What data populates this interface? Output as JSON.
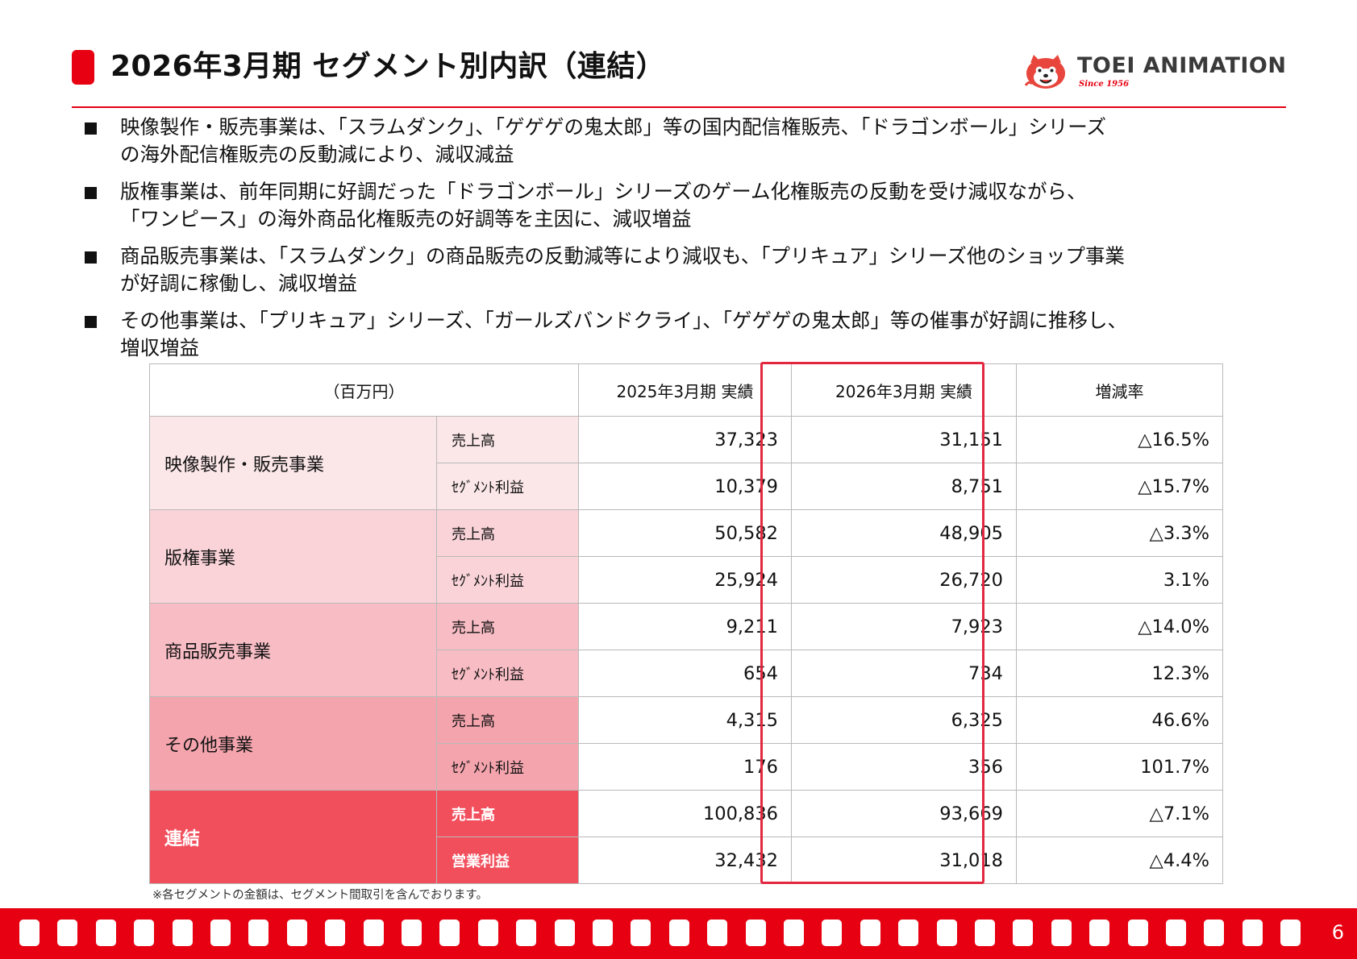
{
  "header": {
    "title": "2026年3月期 セグメント別内訳（連結）",
    "logo": {
      "name": "TOEI ANIMATION",
      "tagline": "Since 1956"
    }
  },
  "bullets": [
    {
      "line1": "映像製作・販売事業は、「スラムダンク」、「ゲゲゲの鬼太郎」等の国内配信権販売、「ドラゴンボール」シリーズ",
      "line2": "の海外配信権販売の反動減により、減収減益"
    },
    {
      "line1": "版権事業は、前年同期に好調だった「ドラゴンボール」シリーズのゲーム化権販売の反動を受け減収ながら、",
      "line2": "「ワンピース」の海外商品化権販売の好調等を主因に、減収増益"
    },
    {
      "line1": "商品販売事業は、「スラムダンク」の商品販売の反動減等により減収も、「プリキュア」シリーズ他のショップ事業",
      "line2": "が好調に稼働し、減収増益"
    },
    {
      "line1": "その他事業は、「プリキュア」シリーズ、「ガールズバンドクライ」、「ゲゲゲの鬼太郎」等の催事が好調に推移し、",
      "line2": "増収増益"
    }
  ],
  "table": {
    "unit": "（百万円）",
    "col_prev": "2025年3月期 実績",
    "col_curr": "2026年3月期 実績",
    "col_rate": "増減率",
    "segments": [
      {
        "name": "映像製作・販売事業",
        "rows": [
          {
            "item": "売上高",
            "prev": "37,323",
            "curr": "31,151",
            "rate": "△16.5%"
          },
          {
            "item": "ｾｸﾞﾒﾝﾄ利益",
            "prev": "10,379",
            "curr": "8,751",
            "rate": "△15.7%"
          }
        ]
      },
      {
        "name": "版権事業",
        "rows": [
          {
            "item": "売上高",
            "prev": "50,582",
            "curr": "48,905",
            "rate": "△3.3%"
          },
          {
            "item": "ｾｸﾞﾒﾝﾄ利益",
            "prev": "25,924",
            "curr": "26,720",
            "rate": "3.1%"
          }
        ]
      },
      {
        "name": "商品販売事業",
        "rows": [
          {
            "item": "売上高",
            "prev": "9,211",
            "curr": "7,923",
            "rate": "△14.0%"
          },
          {
            "item": "ｾｸﾞﾒﾝﾄ利益",
            "prev": "654",
            "curr": "734",
            "rate": "12.3%"
          }
        ]
      },
      {
        "name": "その他事業",
        "rows": [
          {
            "item": "売上高",
            "prev": "4,315",
            "curr": "6,325",
            "rate": "46.6%"
          },
          {
            "item": "ｾｸﾞﾒﾝﾄ利益",
            "prev": "176",
            "curr": "356",
            "rate": "101.7%"
          }
        ]
      },
      {
        "name": "連結",
        "rows": [
          {
            "item": "売上高",
            "prev": "100,836",
            "curr": "93,669",
            "rate": "△7.1%"
          },
          {
            "item": "営業利益",
            "prev": "32,432",
            "curr": "31,018",
            "rate": "△4.4%"
          }
        ]
      }
    ]
  },
  "footnote": "※各セグメントの金額は、セグメント間取引を含んでおります。",
  "page_number": "6",
  "colors": {
    "accent": "#e60012",
    "highlight_border": "#e3273f",
    "consolidated": "#f24f5d"
  }
}
